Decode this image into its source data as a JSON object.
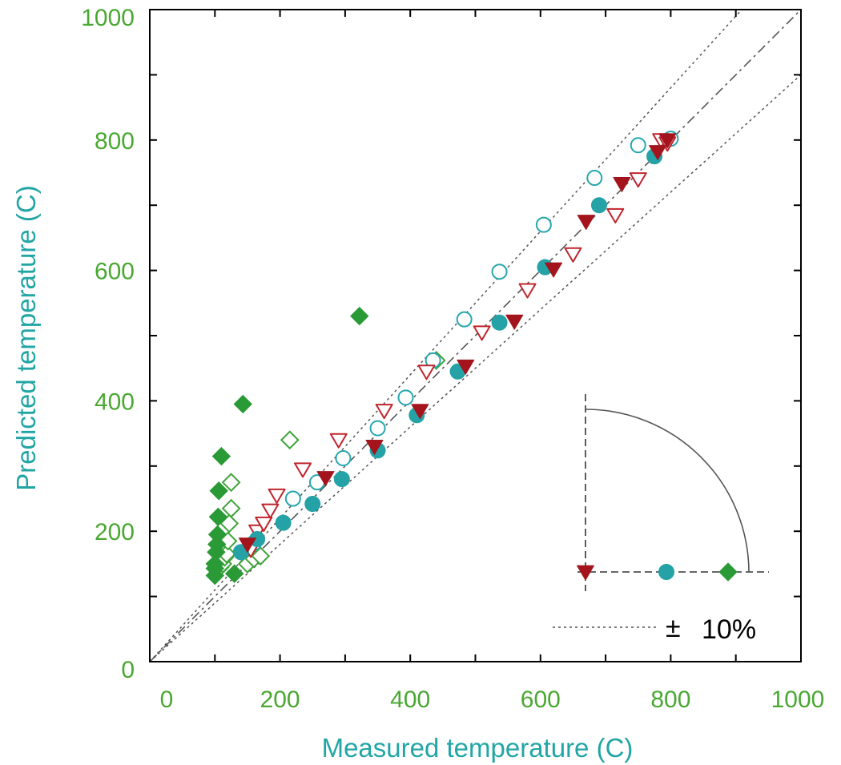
{
  "colors": {
    "tick_label": "#4aa832",
    "axis_title": "#22a5a5",
    "filled_diamond": "#2a9a36",
    "open_diamond": "#3fa33a",
    "open_circle": "#27a7ad",
    "filled_circle": "#24a2a6",
    "filled_triangle": "#a3141c",
    "open_triangle": "#c0252c",
    "frame": "#000000",
    "reference_line": "#555555"
  },
  "chart_data": {
    "type": "scatter",
    "xlabel": "Measured temperature (C)",
    "ylabel": "Predicted temperature (C)",
    "xlim": [
      0,
      1000
    ],
    "ylim": [
      0,
      1000
    ],
    "xticks": [
      0,
      200,
      400,
      600,
      800,
      1000
    ],
    "yticks": [
      0,
      200,
      400,
      600,
      800,
      1000
    ],
    "x_tick_labels": [
      "0",
      "200",
      "400",
      "600",
      "800",
      "1000"
    ],
    "y_tick_labels": [
      "0",
      "200",
      "400",
      "600",
      "800",
      "1000"
    ],
    "minor_ticks": [
      100,
      300,
      500,
      700,
      900
    ],
    "grid": false,
    "reference_lines": [
      {
        "kind": "identity",
        "slope": 1.0,
        "style": "dashed"
      },
      {
        "kind": "plus_10_percent",
        "slope": 1.1,
        "style": "dotted"
      },
      {
        "kind": "minus_10_percent",
        "slope": 0.9,
        "style": "dotted"
      }
    ],
    "legend": {
      "placement": "bottom-right",
      "tolerance_label": "±",
      "tolerance_value": "10%"
    },
    "series": [
      {
        "marker": "diamond",
        "filled": true,
        "points": [
          [
            100,
            132
          ],
          [
            100,
            143
          ],
          [
            100,
            150
          ],
          [
            102,
            168
          ],
          [
            103,
            180
          ],
          [
            104,
            195
          ],
          [
            105,
            222
          ],
          [
            106,
            262
          ],
          [
            110,
            315
          ],
          [
            143,
            395
          ],
          [
            322,
            530
          ],
          [
            130,
            135
          ]
        ]
      },
      {
        "marker": "diamond",
        "filled": false,
        "points": [
          [
            108,
            145
          ],
          [
            112,
            150
          ],
          [
            115,
            160
          ],
          [
            118,
            165
          ],
          [
            120,
            185
          ],
          [
            122,
            212
          ],
          [
            125,
            235
          ],
          [
            125,
            275
          ],
          [
            150,
            150
          ],
          [
            160,
            158
          ],
          [
            170,
            162
          ],
          [
            215,
            340
          ],
          [
            440,
            462
          ]
        ]
      },
      {
        "marker": "circle",
        "filled": false,
        "points": [
          [
            160,
            182
          ],
          [
            220,
            250
          ],
          [
            257,
            275
          ],
          [
            297,
            312
          ],
          [
            350,
            358
          ],
          [
            393,
            405
          ],
          [
            435,
            462
          ],
          [
            483,
            525
          ],
          [
            537,
            598
          ],
          [
            605,
            670
          ],
          [
            683,
            742
          ],
          [
            750,
            792
          ],
          [
            800,
            802
          ]
        ]
      },
      {
        "marker": "circle",
        "filled": true,
        "points": [
          [
            140,
            168
          ],
          [
            165,
            188
          ],
          [
            205,
            213
          ],
          [
            250,
            242
          ],
          [
            295,
            280
          ],
          [
            350,
            324
          ],
          [
            410,
            378
          ],
          [
            473,
            445
          ],
          [
            537,
            520
          ],
          [
            607,
            605
          ],
          [
            690,
            700
          ],
          [
            775,
            775
          ]
        ]
      },
      {
        "marker": "triangle_down",
        "filled": true,
        "points": [
          [
            150,
            180
          ],
          [
            270,
            282
          ],
          [
            345,
            330
          ],
          [
            415,
            385
          ],
          [
            485,
            453
          ],
          [
            560,
            522
          ],
          [
            620,
            602
          ],
          [
            670,
            675
          ],
          [
            725,
            733
          ],
          [
            780,
            782
          ],
          [
            795,
            800
          ]
        ]
      },
      {
        "marker": "triangle_down",
        "filled": false,
        "points": [
          [
            155,
            172
          ],
          [
            165,
            200
          ],
          [
            175,
            212
          ],
          [
            185,
            232
          ],
          [
            195,
            255
          ],
          [
            235,
            295
          ],
          [
            290,
            340
          ],
          [
            360,
            385
          ],
          [
            425,
            445
          ],
          [
            510,
            505
          ],
          [
            580,
            570
          ],
          [
            650,
            625
          ],
          [
            715,
            685
          ],
          [
            750,
            740
          ],
          [
            785,
            800
          ],
          [
            795,
            795
          ]
        ]
      }
    ]
  }
}
